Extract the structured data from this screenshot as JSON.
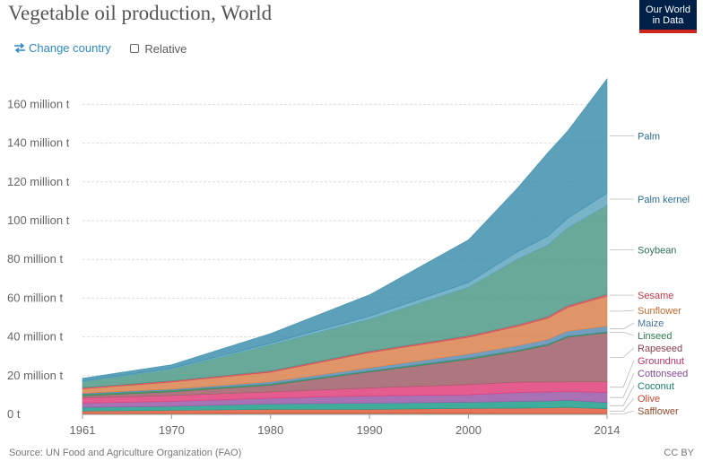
{
  "header": {
    "title": "Vegetable oil production, World",
    "logo_line1": "Our World",
    "logo_line2": "in Data"
  },
  "controls": {
    "change_country": "Change country",
    "relative": "Relative"
  },
  "footer": {
    "source": "Source: UN Food and Agriculture Organization (FAO)",
    "license": "CC BY"
  },
  "chart_data": {
    "type": "area",
    "stacked": true,
    "x": [
      1961,
      1970,
      1980,
      1990,
      2000,
      2005,
      2008,
      2010,
      2014
    ],
    "x_ticks": [
      "1961",
      "1970",
      "1980",
      "1990",
      "2000",
      "2014"
    ],
    "y_ticks": [
      "0 t",
      "20 million t",
      "40 million t",
      "60 million t",
      "80 million t",
      "100 million t",
      "120 million t",
      "140 million t",
      "160 million t"
    ],
    "ylim": [
      0,
      175
    ],
    "grid": true,
    "legend_position": "right",
    "series": [
      {
        "name": "Safflower",
        "color": "#b0613a",
        "values": [
          0.4,
          0.6,
          0.8,
          0.8,
          0.7,
          0.6,
          0.6,
          0.6,
          0.5
        ]
      },
      {
        "name": "Olive",
        "color": "#e35b3b",
        "values": [
          1.3,
          1.5,
          1.8,
          1.8,
          2.4,
          2.6,
          2.8,
          3.0,
          2.4
        ]
      },
      {
        "name": "Coconut",
        "color": "#1f9e89",
        "values": [
          1.9,
          2.0,
          2.8,
          3.2,
          3.2,
          3.5,
          3.5,
          3.7,
          3.2
        ]
      },
      {
        "name": "Cottonseed",
        "color": "#9a59a8",
        "values": [
          2.3,
          2.6,
          3.0,
          3.8,
          3.8,
          4.6,
          4.7,
          4.5,
          5.2
        ]
      },
      {
        "name": "Groundnut",
        "color": "#e0407b",
        "values": [
          2.6,
          3.0,
          3.2,
          4.0,
          5.3,
          5.3,
          5.1,
          5.0,
          5.5
        ]
      },
      {
        "name": "Rapeseed",
        "color": "#a05f6a",
        "values": [
          1.1,
          2.0,
          3.5,
          8.3,
          13.0,
          16.0,
          19.0,
          23.0,
          25.3
        ]
      },
      {
        "name": "Linseed",
        "color": "#2e8b57",
        "values": [
          0.9,
          0.8,
          0.7,
          0.6,
          0.7,
          0.6,
          0.6,
          0.6,
          0.6
        ]
      },
      {
        "name": "Maize",
        "color": "#5b8db5",
        "values": [
          0.4,
          0.5,
          1.0,
          1.5,
          2.0,
          2.2,
          2.3,
          2.5,
          2.8
        ]
      },
      {
        "name": "Sunflower",
        "color": "#d9834e",
        "values": [
          2.3,
          3.7,
          5.0,
          7.9,
          8.7,
          10.1,
          11.0,
          12.3,
          15.6
        ]
      },
      {
        "name": "Sesame",
        "color": "#d14b5b",
        "values": [
          0.6,
          0.6,
          0.6,
          0.7,
          0.8,
          0.8,
          0.8,
          0.9,
          0.9
        ]
      },
      {
        "name": "Soybean",
        "color": "#4d9a87",
        "values": [
          3.0,
          6.0,
          13.5,
          16.5,
          25.0,
          34.0,
          37.0,
          40.0,
          46.0
        ]
      },
      {
        "name": "Palm kernel",
        "color": "#60a7c0",
        "values": [
          0.4,
          0.5,
          0.8,
          1.6,
          2.5,
          3.8,
          4.6,
          5.0,
          6.2
        ]
      },
      {
        "name": "Palm",
        "color": "#3f8fad",
        "values": [
          1.4,
          1.8,
          5.0,
          11.0,
          22.0,
          33.0,
          43.0,
          45.0,
          59.0
        ]
      }
    ]
  }
}
